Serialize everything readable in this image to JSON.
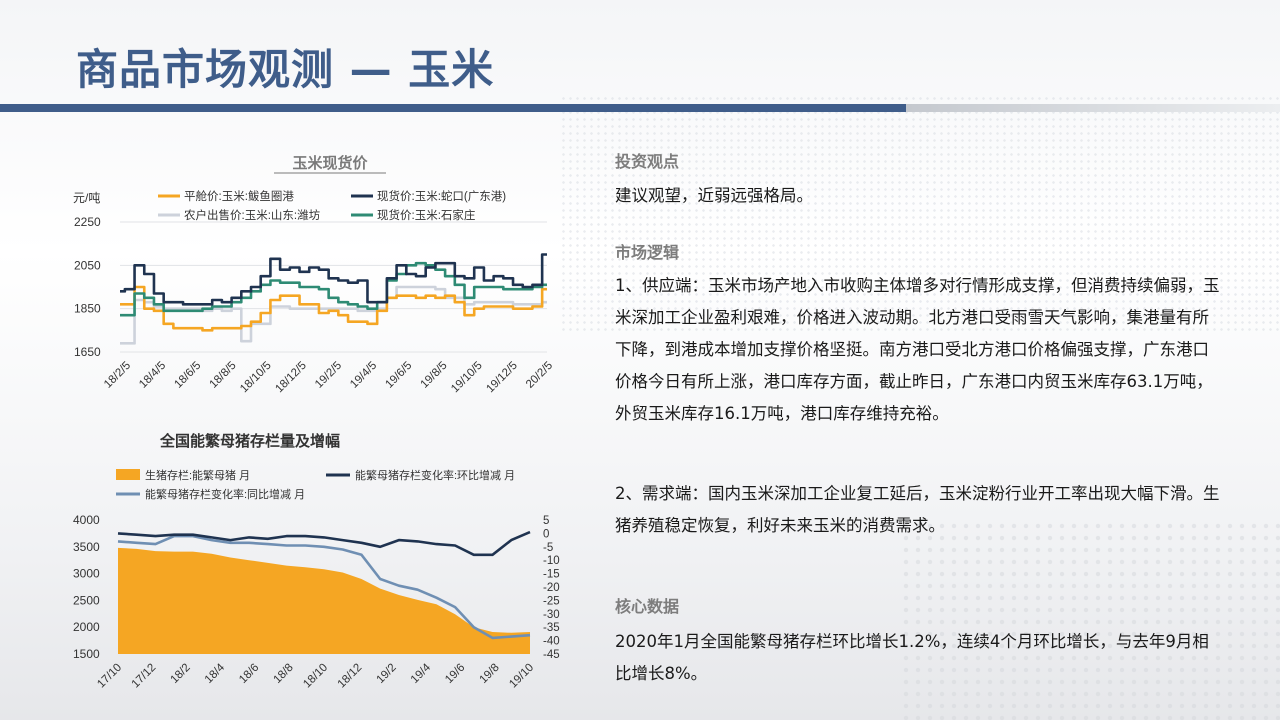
{
  "page": {
    "title": "商品市场观测 — 玉米"
  },
  "right": {
    "sections": [
      {
        "heading": "投资观点",
        "paragraphs": [
          "建议观望，近弱远强格局。"
        ]
      },
      {
        "heading": "市场逻辑",
        "paragraphs": [
          "1、供应端：玉米市场产地入市收购主体增多对行情形成支撑，但消费持续偏弱，玉米深加工企业盈利艰难，价格进入波动期。北方港口受雨雪天气影响，集港量有所下降，到港成本增加支撑价格坚挺。南方港口受北方港口价格偏强支撑，广东港口价格今日有所上涨，港口库存方面，截止昨日，广东港口内贸玉米库存63.1万吨，外贸玉米库存16.1万吨，港口库存维持充裕。",
          "2、需求端：国内玉米深加工企业复工延后，玉米淀粉行业开工率出现大幅下滑。生猪养殖稳定恢复，利好未来玉米的消费需求。"
        ]
      },
      {
        "heading": "核心数据",
        "paragraphs": [
          "2020年1月全国能繁母猪存栏环比增长1.2%，连续4个月环比增长，与去年9月相比增长8%。"
        ]
      }
    ]
  },
  "chart_data": [
    {
      "type": "line",
      "title": "玉米现货价",
      "ylabel": "元/吨",
      "ylim": [
        1650,
        2250
      ],
      "yticks": [
        1650,
        1850,
        2050,
        2250
      ],
      "xticks": [
        "18/2/5",
        "18/4/5",
        "18/6/5",
        "18/8/5",
        "18/10/5",
        "18/12/5",
        "19/2/5",
        "19/4/5",
        "19/6/5",
        "19/8/5",
        "19/10/5",
        "19/12/5",
        "20/2/5"
      ],
      "grid": true,
      "legend": "top",
      "series": [
        {
          "name": "平舱价:玉米:鲅鱼圈港",
          "color": "#f5a623",
          "values": [
            1870,
            1870,
            1950,
            1850,
            1840,
            1780,
            1760,
            1760,
            1760,
            1750,
            1760,
            1760,
            1760,
            1770,
            1790,
            1830,
            1890,
            1910,
            1910,
            1870,
            1870,
            1830,
            1840,
            1820,
            1790,
            1790,
            1780,
            1840,
            1900,
            1910,
            1910,
            1900,
            1910,
            1900,
            1910,
            1880,
            1820,
            1850,
            1860,
            1860,
            1860,
            1850,
            1850,
            1860,
            1940
          ]
        },
        {
          "name": "现货价:玉米:蛇口(广东港)",
          "color": "#1f3350",
          "values": [
            1930,
            1940,
            2050,
            2010,
            1920,
            1880,
            1880,
            1870,
            1870,
            1870,
            1890,
            1880,
            1900,
            1930,
            1950,
            2000,
            2080,
            2030,
            2040,
            2020,
            2040,
            2030,
            1990,
            1980,
            1970,
            1980,
            1880,
            1880,
            1990,
            2050,
            2010,
            2000,
            2040,
            2060,
            2060,
            2000,
            1990,
            2040,
            1980,
            2000,
            1990,
            1960,
            1950,
            1960,
            2100
          ]
        },
        {
          "name": "农户出售价:玉米:山东:潍坊",
          "color": "#cdd2db",
          "values": [
            1690,
            1690,
            1890,
            1880,
            1860,
            1850,
            1850,
            1850,
            1850,
            1840,
            1850,
            1840,
            1850,
            1700,
            1780,
            1780,
            1860,
            1860,
            1850,
            1850,
            1850,
            1850,
            1850,
            1850,
            1850,
            1840,
            1840,
            1850,
            1900,
            1950,
            1950,
            1950,
            1950,
            1940,
            1900,
            1900,
            1870,
            1880,
            1880,
            1880,
            1880,
            1870,
            1870,
            1870,
            1880
          ]
        },
        {
          "name": "现货价:玉米:石家庄",
          "color": "#2e8b74",
          "values": [
            1820,
            1820,
            1920,
            1900,
            1870,
            1840,
            1840,
            1840,
            1840,
            1850,
            1860,
            1860,
            1880,
            1900,
            1930,
            1960,
            1980,
            1970,
            1970,
            1950,
            1950,
            1940,
            1900,
            1880,
            1870,
            1860,
            1850,
            1880,
            1980,
            2010,
            2050,
            2060,
            2050,
            2030,
            2000,
            1960,
            1900,
            1950,
            1950,
            1950,
            1940,
            1940,
            1940,
            1950,
            1960
          ]
        }
      ]
    },
    {
      "type": "area",
      "title": "全国能繁母猪存栏量及增幅",
      "ylim_left": [
        1500,
        4000
      ],
      "yticks_left": [
        1500,
        2000,
        2500,
        3000,
        3500,
        4000
      ],
      "ylim_right": [
        -45,
        5
      ],
      "yticks_right": [
        5,
        0,
        -5,
        -10,
        -15,
        -20,
        -25,
        -30,
        -35,
        -40,
        -45
      ],
      "xticks": [
        "17/10",
        "17/12",
        "18/2",
        "18/4",
        "18/6",
        "18/8",
        "18/10",
        "18/12",
        "19/2",
        "19/4",
        "19/6",
        "19/8",
        "19/10"
      ],
      "legend": "top",
      "series": [
        {
          "name": "生猪存栏:能繁母猪 月",
          "color": "#f5a623",
          "axis": "left",
          "kind": "area",
          "values": [
            3480,
            3460,
            3420,
            3410,
            3410,
            3370,
            3300,
            3250,
            3200,
            3150,
            3120,
            3080,
            3020,
            2900,
            2720,
            2600,
            2510,
            2430,
            2240,
            2000,
            1910,
            1895,
            1910
          ]
        },
        {
          "name": "能繁母猪存栏变化率:环比增减 月",
          "color": "#1f3350",
          "axis": "right",
          "kind": "line",
          "values": [
            0,
            -0.5,
            -1,
            -0.5,
            -0.5,
            -1.5,
            -2.5,
            -1.5,
            -2,
            -1,
            -1,
            -1.5,
            -2.5,
            -3.5,
            -5,
            -2.5,
            -3,
            -4,
            -4.5,
            -8,
            -8,
            -2.5,
            0.5
          ]
        },
        {
          "name": "能繁母猪存栏变化率:同比增减 月",
          "color": "#6f8fb3",
          "axis": "right",
          "kind": "line",
          "values": [
            -3,
            -3.5,
            -4,
            -1,
            -1,
            -2.5,
            -3.5,
            -3.5,
            -4,
            -4.5,
            -4.5,
            -5,
            -6,
            -8,
            -17,
            -19.5,
            -21,
            -24,
            -27.5,
            -35,
            -39,
            -38.5,
            -38
          ]
        }
      ]
    }
  ]
}
